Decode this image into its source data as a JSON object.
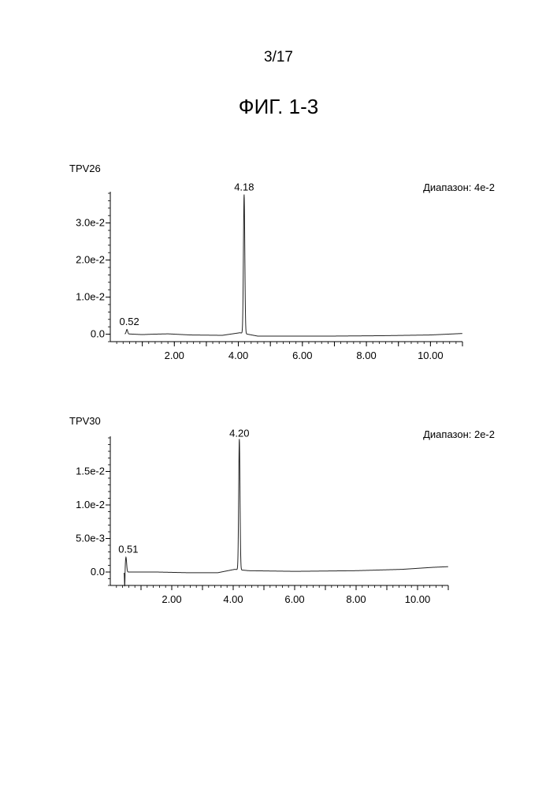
{
  "page": {
    "number": "3/17",
    "figure_title": "ФИГ. 1-3"
  },
  "chart_data": [
    {
      "type": "line",
      "title": "TPV26",
      "range_label": "Диапазон: 4e-2",
      "xlabel": "",
      "ylabel": "",
      "xlim": [
        0.0,
        11.0
      ],
      "ylim": [
        -0.002,
        0.038
      ],
      "x_ticks": [
        2.0,
        4.0,
        6.0,
        8.0,
        10.0
      ],
      "x_tick_labels": [
        "2.00",
        "4.00",
        "6.00",
        "8.00",
        "10.00"
      ],
      "y_ticks": [
        0.0,
        0.01,
        0.02,
        0.03
      ],
      "y_tick_labels": [
        "0.0",
        "1.0e-2",
        "2.0e-2",
        "3.0e-2"
      ],
      "peaks": [
        {
          "x": 0.52,
          "y": 0.0012,
          "width": 0.03,
          "label": "0.52"
        },
        {
          "x": 4.18,
          "y": 0.0375,
          "width": 0.03,
          "label": "4.18"
        }
      ],
      "baseline": [
        [
          0.0,
          0.0002
        ],
        [
          0.5,
          0.0001
        ],
        [
          1.0,
          -0.0001
        ],
        [
          1.3,
          0.0
        ],
        [
          1.8,
          0.0001
        ],
        [
          2.5,
          -0.0002
        ],
        [
          3.5,
          -0.0003
        ],
        [
          4.05,
          0.0004
        ],
        [
          4.6,
          -0.0005
        ],
        [
          5.5,
          -0.0005
        ],
        [
          7.0,
          -0.0005
        ],
        [
          8.5,
          -0.0004
        ],
        [
          10.0,
          -0.0002
        ],
        [
          11.0,
          0.0002
        ]
      ],
      "grid": false,
      "legend": "none"
    },
    {
      "type": "line",
      "title": "TPV30",
      "range_label": "Диапазон: 2e-2",
      "xlabel": "",
      "ylabel": "",
      "xlim": [
        0.0,
        11.0
      ],
      "ylim": [
        -0.002,
        0.02
      ],
      "x_ticks": [
        2.0,
        4.0,
        6.0,
        8.0,
        10.0
      ],
      "x_tick_labels": [
        "2.00",
        "4.00",
        "6.00",
        "8.00",
        "10.00"
      ],
      "y_ticks": [
        0.0,
        0.005,
        0.01,
        0.015
      ],
      "y_tick_labels": [
        "0.0",
        "5.0e-3",
        "1.0e-2",
        "1.5e-2"
      ],
      "peaks": [
        {
          "x": 0.51,
          "y": 0.0022,
          "width": 0.03,
          "label": "0.51"
        },
        {
          "x": 4.2,
          "y": 0.0195,
          "width": 0.03,
          "label": "4.20"
        }
      ],
      "dips": [
        {
          "x": 0.47,
          "y": -0.0025
        }
      ],
      "baseline": [
        [
          0.0,
          0.0
        ],
        [
          0.6,
          0.0
        ],
        [
          1.5,
          0.0
        ],
        [
          2.5,
          -0.0001
        ],
        [
          3.5,
          -0.0001
        ],
        [
          4.05,
          0.0004
        ],
        [
          4.5,
          0.0002
        ],
        [
          6.0,
          0.0001
        ],
        [
          8.0,
          0.0002
        ],
        [
          9.5,
          0.0004
        ],
        [
          10.5,
          0.0007
        ],
        [
          11.0,
          0.0008
        ]
      ],
      "grid": false,
      "legend": "none"
    }
  ]
}
